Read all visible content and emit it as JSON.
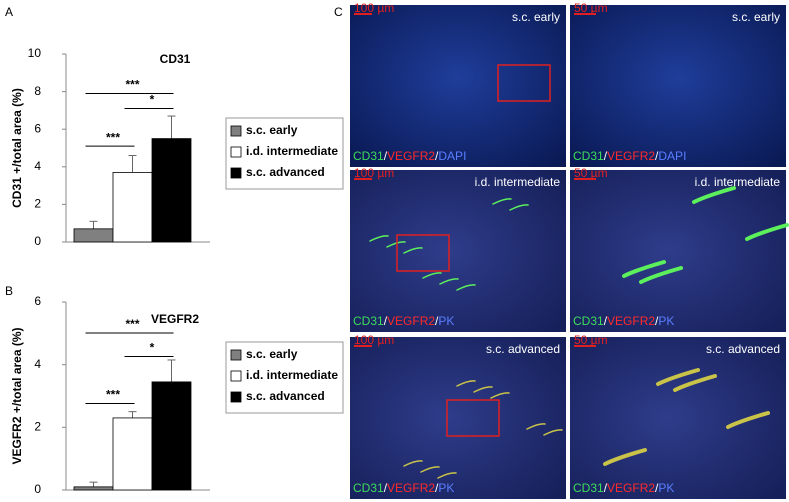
{
  "figure": {
    "panel_labels": [
      "A",
      "B",
      "C"
    ]
  },
  "chart_data": [
    {
      "type": "bar",
      "title": "CD31",
      "ylabel": "CD31 +/total area (%)",
      "ylim": [
        0,
        10
      ],
      "yticks": [
        0,
        2,
        4,
        6,
        8,
        10
      ],
      "series": [
        {
          "name": "s.c. early",
          "color": "#808080",
          "values": [
            0.7
          ],
          "errors": [
            0.4
          ]
        },
        {
          "name": "i.d. intermediate",
          "color": "#ffffff",
          "values": [
            3.7
          ],
          "errors": [
            0.9
          ]
        },
        {
          "name": "s.c. advanced",
          "color": "#000000",
          "values": [
            5.5
          ],
          "errors": [
            1.2
          ]
        }
      ],
      "significance": [
        "***",
        "*",
        "***"
      ]
    },
    {
      "type": "bar",
      "title": "VEGFR2",
      "ylabel": "VEGFR2 +/total area (%)",
      "ylim": [
        0,
        6
      ],
      "yticks": [
        0,
        2,
        4,
        6
      ],
      "series": [
        {
          "name": "s.c. early",
          "color": "#808080",
          "values": [
            0.1
          ],
          "errors": [
            0.15
          ]
        },
        {
          "name": "i.d. intermediate",
          "color": "#ffffff",
          "values": [
            2.3
          ],
          "errors": [
            0.2
          ]
        },
        {
          "name": "s.c. advanced",
          "color": "#000000",
          "values": [
            3.45
          ],
          "errors": [
            0.7
          ]
        }
      ],
      "significance": [
        "***",
        "*",
        "***"
      ]
    }
  ],
  "images": [
    {
      "label": "s.c. early",
      "scale": "100 µm",
      "stain": [
        "CD31",
        "/",
        "VEGFR2",
        "/",
        "DAPI"
      ]
    },
    {
      "label": "s.c. early",
      "scale": "50 µm",
      "stain": [
        "CD31",
        "/",
        "VEGFR2",
        "/",
        "DAPI"
      ]
    },
    {
      "label": "i.d. intermediate",
      "scale": "100 µm",
      "stain": [
        "CD31",
        "/",
        "VEGFR2",
        "/",
        "PK"
      ]
    },
    {
      "label": "i.d. intermediate",
      "scale": "50 µm",
      "stain": [
        "CD31",
        "/",
        "VEGFR2",
        "/",
        "PK"
      ]
    },
    {
      "label": "s.c. advanced",
      "scale": "100 µm",
      "stain": [
        "CD31",
        "/",
        "VEGFR2",
        "/",
        "PK"
      ]
    },
    {
      "label": "s.c. advanced",
      "scale": "50 µm",
      "stain": [
        "CD31",
        "/",
        "VEGFR2",
        "/",
        "PK"
      ]
    }
  ]
}
